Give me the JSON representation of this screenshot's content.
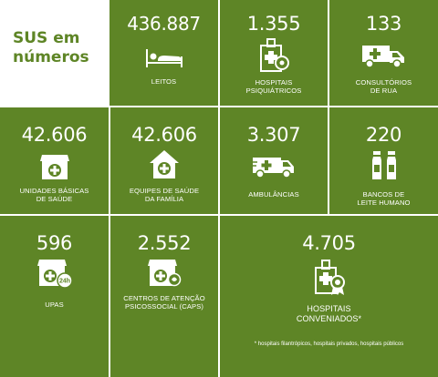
{
  "title": {
    "line1": "SUS em",
    "line2": "números"
  },
  "stats": {
    "leitos": {
      "value": "436.887",
      "label1": "LEITOS",
      "icon": "bed-icon"
    },
    "hospitais_psiq": {
      "value": "1.355",
      "label1": "HOSPITAIS",
      "label2": "PSIQUIÁTRICOS",
      "icon": "hospital-building-icon"
    },
    "consultorios": {
      "value": "133",
      "label1": "CONSULTÓRIOS",
      "label2": "DE RUA",
      "icon": "medical-truck-icon"
    },
    "ubs": {
      "value": "42.606",
      "label1": "UNIDADES BÁSICAS",
      "label2": "DE SAÚDE",
      "icon": "health-unit-icon"
    },
    "equipes": {
      "value": "42.606",
      "label1": "EQUIPES DE SAÚDE",
      "label2": "DA FAMÍLIA",
      "icon": "health-house-icon"
    },
    "ambulancias": {
      "value": "3.307",
      "label1": "AMBULÂNCIAS",
      "icon": "ambulance-icon"
    },
    "bancos": {
      "value": "220",
      "label1": "BANCOS DE",
      "label2": "LEITE HUMANO",
      "icon": "milk-bottles-icon"
    },
    "upas": {
      "value": "596",
      "label1": "UPAS",
      "icon": "upa-24h-icon"
    },
    "caps": {
      "value": "2.552",
      "label1": "CENTROS DE ATENÇÃO",
      "label2": "PSICOSSOCIAL (CAPS)",
      "icon": "caps-building-icon"
    },
    "conveniados": {
      "value": "4.705",
      "label1": "HOSPITAIS",
      "label2": "CONVENIADOS*",
      "icon": "hospital-badge-icon"
    }
  },
  "footnote": "* hospitais filantrópicos, hospitais privados, hospitais públicos",
  "colors": {
    "tile": "#5e8526",
    "background": "#ffffff",
    "text": "#ffffff"
  }
}
